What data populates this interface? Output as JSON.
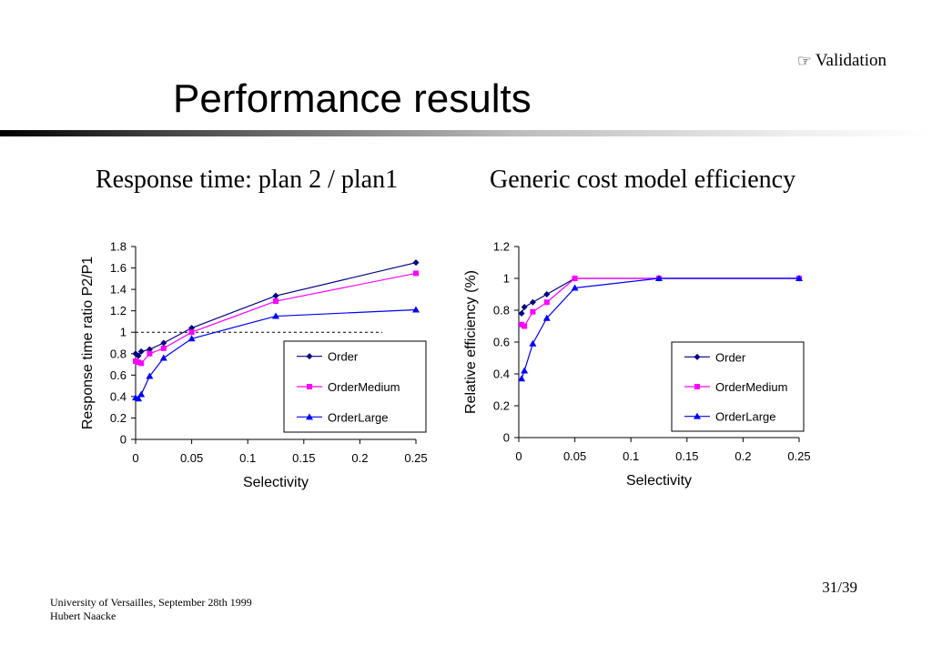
{
  "header": {
    "section": "Validation",
    "section_icon": "pointing-hand-icon",
    "title": "Performance results"
  },
  "subtitles": {
    "left": "Response time: plan 2 / plan1",
    "right": "Generic cost model efficiency"
  },
  "footer": {
    "organization": "University of Versailles, September 28th 1999",
    "author": "Hubert Naacke",
    "page": "31/39"
  },
  "colors": {
    "Order": "#000080",
    "OrderMedium": "#ff00ff",
    "OrderLarge": "#0000ff"
  },
  "chart_data": [
    {
      "type": "line",
      "title": "",
      "xlabel": "Selectivity",
      "ylabel": "Response time ratio P2/P1",
      "xlim": [
        0,
        0.25
      ],
      "ylim": [
        0,
        1.8
      ],
      "xticks": [
        "0",
        "0.05",
        "0.1",
        "0.15",
        "0.2",
        "0.25"
      ],
      "yticks": [
        "0",
        "0.2",
        "0.4",
        "0.6",
        "0.8",
        "1",
        "1.2",
        "1.4",
        "1.6",
        "1.8"
      ],
      "reference_line": {
        "y": 1,
        "x_end": 0.22,
        "style": "dashed"
      },
      "legend_position": "bottom-right",
      "grid": false,
      "series": [
        {
          "name": "Order",
          "marker": "diamond",
          "x": [
            0,
            0.0025,
            0.005,
            0.0125,
            0.025,
            0.05,
            0.125,
            0.25
          ],
          "y": [
            0.8,
            0.78,
            0.82,
            0.84,
            0.9,
            1.04,
            1.34,
            1.65
          ]
        },
        {
          "name": "OrderMedium",
          "marker": "square",
          "x": [
            0,
            0.0025,
            0.005,
            0.0125,
            0.025,
            0.05,
            0.125,
            0.25
          ],
          "y": [
            0.73,
            0.72,
            0.71,
            0.8,
            0.85,
            1.0,
            1.29,
            1.55
          ]
        },
        {
          "name": "OrderLarge",
          "marker": "triangle",
          "x": [
            0,
            0.0025,
            0.005,
            0.0125,
            0.025,
            0.05,
            0.125,
            0.25
          ],
          "y": [
            0.39,
            0.38,
            0.42,
            0.59,
            0.76,
            0.94,
            1.15,
            1.21
          ]
        }
      ]
    },
    {
      "type": "line",
      "title": "",
      "xlabel": "Selectivity",
      "ylabel": "Relative efficiency (%)",
      "xlim": [
        0,
        0.25
      ],
      "ylim": [
        0,
        1.2
      ],
      "xticks": [
        "0",
        "0.05",
        "0.1",
        "0.15",
        "0.2",
        "0.25"
      ],
      "yticks": [
        "0",
        "0.2",
        "0.4",
        "0.6",
        "0.8",
        "1",
        "1.2"
      ],
      "legend_position": "right",
      "grid": false,
      "series": [
        {
          "name": "Order",
          "marker": "diamond",
          "x": [
            0.0025,
            0.005,
            0.0125,
            0.025,
            0.05,
            0.125,
            0.25
          ],
          "y": [
            0.78,
            0.82,
            0.85,
            0.9,
            1.0,
            1.0,
            1.0
          ]
        },
        {
          "name": "OrderMedium",
          "marker": "square",
          "x": [
            0.0025,
            0.005,
            0.0125,
            0.025,
            0.05,
            0.125,
            0.25
          ],
          "y": [
            0.71,
            0.7,
            0.79,
            0.85,
            1.0,
            1.0,
            1.0
          ]
        },
        {
          "name": "OrderLarge",
          "marker": "triangle",
          "x": [
            0.0025,
            0.005,
            0.0125,
            0.025,
            0.05,
            0.125,
            0.25
          ],
          "y": [
            0.37,
            0.42,
            0.59,
            0.75,
            0.94,
            1.0,
            1.0
          ]
        }
      ]
    }
  ]
}
